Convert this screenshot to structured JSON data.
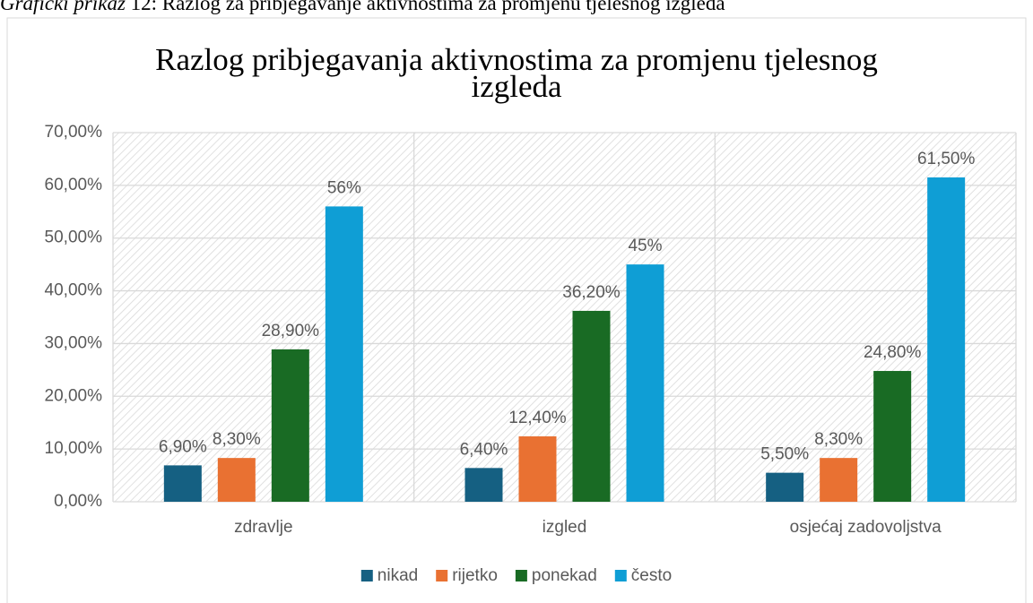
{
  "caption_prefix": "Grafički prikaz",
  "caption": "12: Razlog za pribjegavanje aktivnostima za promjenu tjelesnog izgleda",
  "chart_data": {
    "type": "bar",
    "title": "Razlog pribjegavanja aktivnostima za promjenu tjelesnog izgleda",
    "categories": [
      "zdravlje",
      "izgled",
      "osjećaj zadovoljstva"
    ],
    "series": [
      {
        "name": "nikad",
        "color": "#156082",
        "values": [
          6.9,
          6.4,
          5.5
        ],
        "value_labels": [
          "6,90%",
          "6,40%",
          "5,50%"
        ]
      },
      {
        "name": "rijetko",
        "color": "#e97132",
        "values": [
          8.3,
          12.4,
          8.3
        ],
        "value_labels": [
          "8,30%",
          "12,40%",
          "8,30%"
        ]
      },
      {
        "name": "ponekad",
        "color": "#196b24",
        "values": [
          28.9,
          36.2,
          24.8
        ],
        "value_labels": [
          "28,90%",
          "36,20%",
          "24,80%"
        ]
      },
      {
        "name": "često",
        "color": "#0f9ed5",
        "values": [
          56,
          45,
          61.5
        ],
        "value_labels": [
          "56%",
          "45%",
          "61,50%"
        ]
      }
    ],
    "ylim": [
      0,
      70
    ],
    "yticks": [
      {
        "value": 0,
        "label": "0,00%"
      },
      {
        "value": 10,
        "label": "10,00%"
      },
      {
        "value": 20,
        "label": "20,00%"
      },
      {
        "value": 30,
        "label": "30,00%"
      },
      {
        "value": 40,
        "label": "40,00%"
      },
      {
        "value": 50,
        "label": "50,00%"
      },
      {
        "value": 60,
        "label": "60,00%"
      },
      {
        "value": 70,
        "label": "70,00%"
      }
    ],
    "grid": true,
    "legend": "bottom"
  }
}
